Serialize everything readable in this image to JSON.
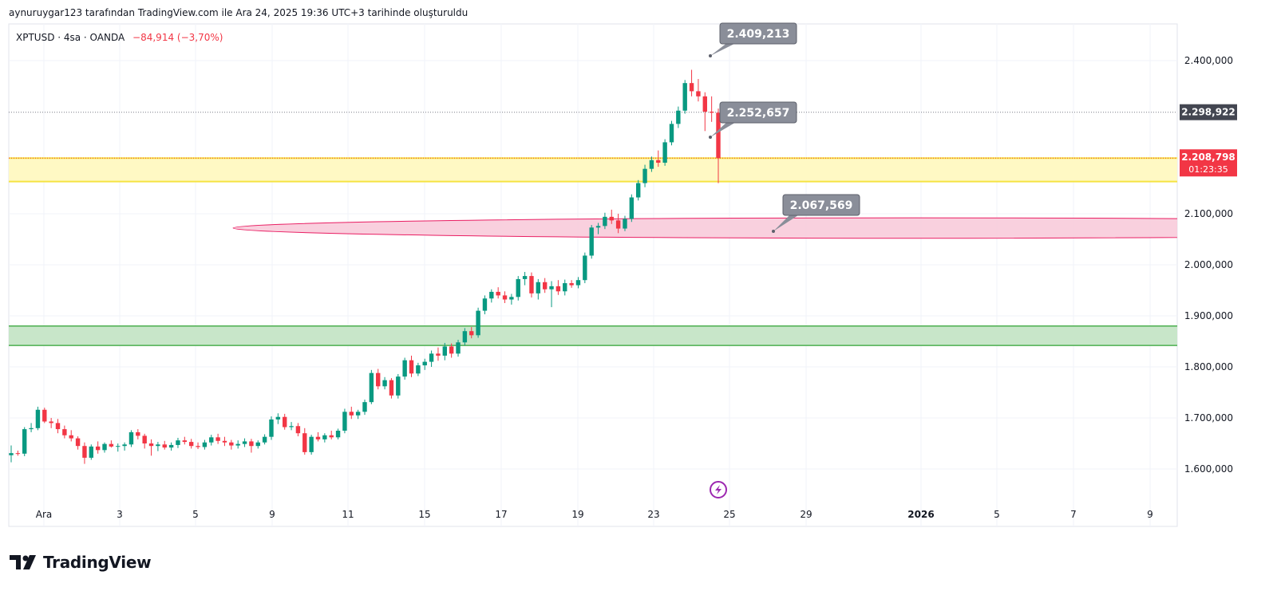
{
  "header": {
    "attribution": "aynuruygar123 tarafından TradingView.com ile Ara 24, 2025 19:36 UTC+3 tarihinde oluşturuldu"
  },
  "legend": {
    "symbol_line": "XPTUSD · 4sa · OANDA",
    "change": "−84,914 (−3,70%)"
  },
  "price_labels": {
    "prev_close": "2.298,922",
    "current_price": "2.208,798",
    "countdown": "01:23:35"
  },
  "callouts": [
    "2.409,213",
    "2.252,657",
    "2.067,569"
  ],
  "footer": {
    "brand": "TradingView"
  },
  "colors": {
    "up": "#089981",
    "down": "#f23645",
    "yellow_zone": "#fff9c4",
    "yellow_line": "#f5e342",
    "green_zone": "#c8e6c9",
    "green_line": "#4caf50",
    "pink_zone": "#f8c8d8",
    "pink_line": "#e91e63",
    "callout_bg": "#8a8e99"
  },
  "chart_data": {
    "type": "candlestick",
    "symbol": "XPTUSD",
    "interval": "4sa",
    "y_ticks": [
      "2.400,000",
      "2.100,000",
      "2.000,000",
      "1.900,000",
      "1.800,000",
      "1.700,000",
      "1.600,000"
    ],
    "y_tick_values": [
      2400,
      2100,
      2000,
      1900,
      1800,
      1700,
      1600
    ],
    "x_ticks": [
      "Ara",
      "3",
      "5",
      "9",
      "11",
      "15",
      "17",
      "19",
      "23",
      "25",
      "29",
      "2026",
      "5",
      "7",
      "9"
    ],
    "x_tick_bold": [
      false,
      false,
      false,
      false,
      false,
      false,
      false,
      false,
      false,
      false,
      false,
      true,
      false,
      false,
      false
    ],
    "ylim": [
      1535,
      2470
    ],
    "zones": [
      {
        "type": "rectangle",
        "top": 2209,
        "bottom": 2163,
        "color": "yellow"
      },
      {
        "type": "rectangle",
        "top": 1880,
        "bottom": 1842,
        "color": "green"
      },
      {
        "type": "ellipse",
        "top": 2092,
        "bottom": 2052,
        "color": "pink"
      }
    ],
    "horizontal_lines": [
      2298.922
    ],
    "callout_values": [
      2409.213,
      2252.657,
      2067.569
    ],
    "candles": [
      [
        1627,
        1646,
        1613,
        1631
      ],
      [
        1631,
        1636,
        1626,
        1630
      ],
      [
        1630,
        1682,
        1625,
        1678
      ],
      [
        1678,
        1690,
        1672,
        1680
      ],
      [
        1680,
        1722,
        1676,
        1716
      ],
      [
        1716,
        1720,
        1690,
        1693
      ],
      [
        1693,
        1700,
        1680,
        1690
      ],
      [
        1690,
        1698,
        1670,
        1678
      ],
      [
        1678,
        1685,
        1660,
        1666
      ],
      [
        1666,
        1676,
        1654,
        1660
      ],
      [
        1660,
        1664,
        1638,
        1645
      ],
      [
        1645,
        1652,
        1610,
        1622
      ],
      [
        1622,
        1648,
        1618,
        1644
      ],
      [
        1644,
        1654,
        1630,
        1637
      ],
      [
        1637,
        1652,
        1632,
        1649
      ],
      [
        1649,
        1656,
        1642,
        1644
      ],
      [
        1644,
        1650,
        1634,
        1645
      ],
      [
        1645,
        1652,
        1636,
        1648
      ],
      [
        1648,
        1676,
        1643,
        1672
      ],
      [
        1672,
        1678,
        1658,
        1665
      ],
      [
        1665,
        1669,
        1640,
        1650
      ],
      [
        1650,
        1658,
        1626,
        1645
      ],
      [
        1645,
        1653,
        1635,
        1648
      ],
      [
        1648,
        1655,
        1638,
        1642
      ],
      [
        1642,
        1652,
        1636,
        1647
      ],
      [
        1647,
        1661,
        1641,
        1656
      ],
      [
        1656,
        1663,
        1648,
        1653
      ],
      [
        1653,
        1659,
        1640,
        1645
      ],
      [
        1645,
        1652,
        1639,
        1643
      ],
      [
        1643,
        1657,
        1638,
        1652
      ],
      [
        1652,
        1667,
        1646,
        1662
      ],
      [
        1662,
        1669,
        1649,
        1655
      ],
      [
        1655,
        1663,
        1645,
        1652
      ],
      [
        1652,
        1657,
        1638,
        1646
      ],
      [
        1646,
        1656,
        1640,
        1649
      ],
      [
        1649,
        1660,
        1643,
        1654
      ],
      [
        1654,
        1659,
        1632,
        1645
      ],
      [
        1645,
        1656,
        1640,
        1652
      ],
      [
        1652,
        1668,
        1648,
        1663
      ],
      [
        1663,
        1703,
        1657,
        1697
      ],
      [
        1697,
        1709,
        1688,
        1702
      ],
      [
        1702,
        1708,
        1677,
        1682
      ],
      [
        1682,
        1692,
        1676,
        1684
      ],
      [
        1684,
        1690,
        1664,
        1670
      ],
      [
        1670,
        1680,
        1628,
        1633
      ],
      [
        1633,
        1667,
        1628,
        1663
      ],
      [
        1663,
        1672,
        1654,
        1658
      ],
      [
        1658,
        1670,
        1652,
        1666
      ],
      [
        1666,
        1675,
        1658,
        1662
      ],
      [
        1662,
        1679,
        1658,
        1675
      ],
      [
        1675,
        1718,
        1670,
        1712
      ],
      [
        1712,
        1722,
        1698,
        1705
      ],
      [
        1705,
        1716,
        1698,
        1712
      ],
      [
        1712,
        1736,
        1706,
        1731
      ],
      [
        1731,
        1794,
        1727,
        1788
      ],
      [
        1788,
        1796,
        1756,
        1762
      ],
      [
        1762,
        1780,
        1756,
        1774
      ],
      [
        1774,
        1778,
        1738,
        1744
      ],
      [
        1744,
        1786,
        1738,
        1781
      ],
      [
        1781,
        1818,
        1775,
        1813
      ],
      [
        1813,
        1822,
        1780,
        1787
      ],
      [
        1787,
        1808,
        1782,
        1803
      ],
      [
        1803,
        1816,
        1794,
        1810
      ],
      [
        1810,
        1832,
        1800,
        1826
      ],
      [
        1826,
        1838,
        1812,
        1822
      ],
      [
        1822,
        1847,
        1813,
        1840
      ],
      [
        1840,
        1846,
        1818,
        1826
      ],
      [
        1826,
        1853,
        1820,
        1848
      ],
      [
        1848,
        1876,
        1842,
        1870
      ],
      [
        1870,
        1878,
        1856,
        1862
      ],
      [
        1862,
        1916,
        1857,
        1910
      ],
      [
        1910,
        1940,
        1903,
        1934
      ],
      [
        1934,
        1952,
        1926,
        1947
      ],
      [
        1947,
        1956,
        1934,
        1940
      ],
      [
        1940,
        1948,
        1925,
        1932
      ],
      [
        1932,
        1943,
        1922,
        1937
      ],
      [
        1937,
        1978,
        1930,
        1972
      ],
      [
        1972,
        1986,
        1960,
        1978
      ],
      [
        1978,
        1985,
        1936,
        1944
      ],
      [
        1944,
        1972,
        1932,
        1966
      ],
      [
        1966,
        1974,
        1945,
        1952
      ],
      [
        1952,
        1968,
        1917,
        1958
      ],
      [
        1958,
        1970,
        1941,
        1948
      ],
      [
        1948,
        1971,
        1940,
        1964
      ],
      [
        1964,
        1970,
        1955,
        1960
      ],
      [
        1960,
        1976,
        1954,
        1970
      ],
      [
        1970,
        2024,
        1964,
        2018
      ],
      [
        2018,
        2078,
        2012,
        2073
      ],
      [
        2073,
        2082,
        2060,
        2076
      ],
      [
        2076,
        2102,
        2070,
        2094
      ],
      [
        2094,
        2108,
        2080,
        2087
      ],
      [
        2087,
        2100,
        2062,
        2071
      ],
      [
        2071,
        2096,
        2066,
        2090
      ],
      [
        2090,
        2138,
        2084,
        2132
      ],
      [
        2132,
        2166,
        2126,
        2160
      ],
      [
        2160,
        2196,
        2152,
        2188
      ],
      [
        2188,
        2212,
        2182,
        2205
      ],
      [
        2205,
        2224,
        2192,
        2200
      ],
      [
        2200,
        2246,
        2194,
        2240
      ],
      [
        2240,
        2282,
        2234,
        2276
      ],
      [
        2276,
        2310,
        2268,
        2302
      ],
      [
        2302,
        2362,
        2296,
        2356
      ],
      [
        2356,
        2382,
        2330,
        2340
      ],
      [
        2340,
        2364,
        2320,
        2330
      ],
      [
        2330,
        2338,
        2262,
        2300
      ],
      [
        2300,
        2330,
        2280,
        2298
      ],
      [
        2298,
        2306,
        2160,
        2209
      ]
    ]
  }
}
